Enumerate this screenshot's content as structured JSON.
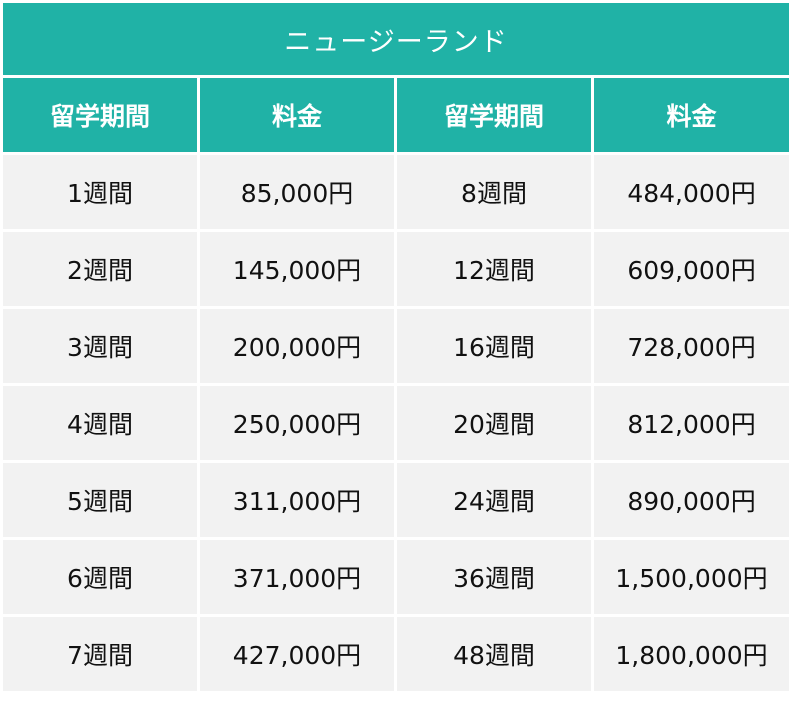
{
  "table": {
    "title": "ニュージーランド",
    "headers": [
      "留学期間",
      "料金",
      "留学期間",
      "料金"
    ],
    "rows": [
      [
        "1週間",
        "85,000円",
        "8週間",
        "484,000円"
      ],
      [
        "2週間",
        "145,000円",
        "12週間",
        "609,000円"
      ],
      [
        "3週間",
        "200,000円",
        "16週間",
        "728,000円"
      ],
      [
        "4週間",
        "250,000円",
        "20週間",
        "812,000円"
      ],
      [
        "5週間",
        "311,000円",
        "24週間",
        "890,000円"
      ],
      [
        "6週間",
        "371,000円",
        "36週間",
        "1,500,000円"
      ],
      [
        "7週間",
        "427,000円",
        "48週間",
        "1,800,000円"
      ]
    ]
  },
  "colors": {
    "header_bg": "#20b2a6",
    "header_text": "#ffffff",
    "cell_bg": "#f2f2f2",
    "cell_text": "#111111",
    "grid": "#ffffff"
  }
}
